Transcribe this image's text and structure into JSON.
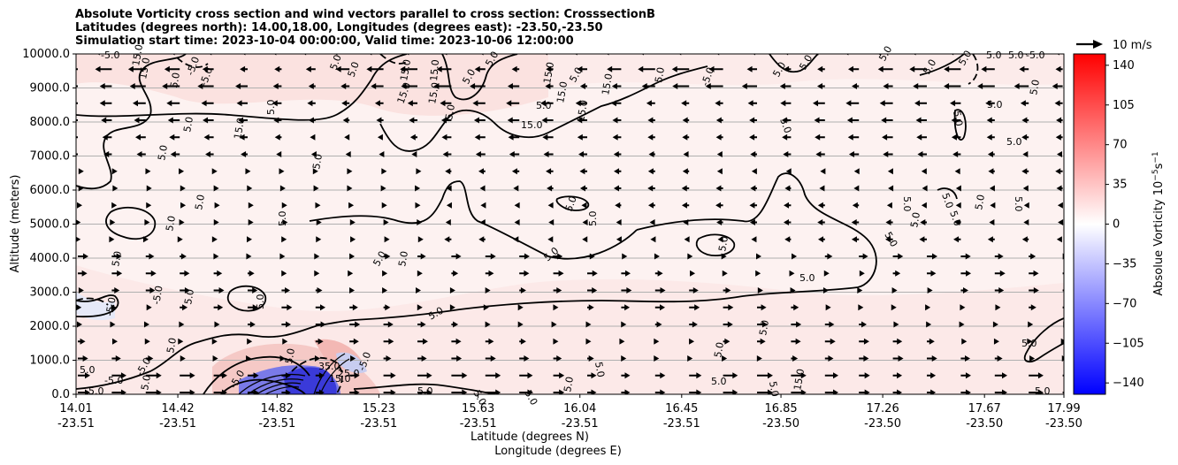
{
  "title_lines": [
    "Absolute Vorticity cross section and wind vectors parallel to cross section: CrosssectionB",
    "Latitudes (degrees north): 14.00,18.00, Longitudes (degrees east): -23.50,-23.50",
    "Simulation start time: 2023-10-04 00:00:00, Valid time: 2023-10-06 12:00:00"
  ],
  "chart_data": {
    "type": "heatmap",
    "ylabel": "Altitude (meters)",
    "xlabel_lat": "Latitude (degrees N)",
    "xlabel_lon": "Longitude (degrees E)",
    "ylim": [
      0,
      10000
    ],
    "y_ticks": [
      "0.0",
      "1000.0",
      "2000.0",
      "3000.0",
      "4000.0",
      "5000.0",
      "6000.0",
      "7000.0",
      "8000.0",
      "9000.0",
      "10000.0"
    ],
    "x_ticks": [
      {
        "lat": "14.01",
        "lon": "-23.51"
      },
      {
        "lat": "14.42",
        "lon": "-23.51"
      },
      {
        "lat": "14.82",
        "lon": "-23.51"
      },
      {
        "lat": "15.23",
        "lon": "-23.51"
      },
      {
        "lat": "15.63",
        "lon": "-23.51"
      },
      {
        "lat": "16.04",
        "lon": "-23.51"
      },
      {
        "lat": "16.45",
        "lon": "-23.51"
      },
      {
        "lat": "16.85",
        "lon": "-23.50"
      },
      {
        "lat": "17.26",
        "lon": "-23.50"
      },
      {
        "lat": "17.67",
        "lon": "-23.50"
      },
      {
        "lat": "17.99",
        "lon": "-23.50"
      }
    ],
    "grid_y": true,
    "colorbar": {
      "label": "Absolue Vorticity 10",
      "label_exp1": "−5",
      "label_mid": "s",
      "label_exp2": "−1",
      "range": [
        -150,
        150
      ],
      "ticks": [
        "140",
        "105",
        "70",
        "35",
        "0",
        "−35",
        "−70",
        "−105",
        "−140"
      ],
      "colormap": "bwr"
    },
    "quiver_key": "10 m/s",
    "contour_labels": [
      "5.0",
      "-5.0",
      "15.0",
      "25.0",
      "35.0"
    ]
  }
}
